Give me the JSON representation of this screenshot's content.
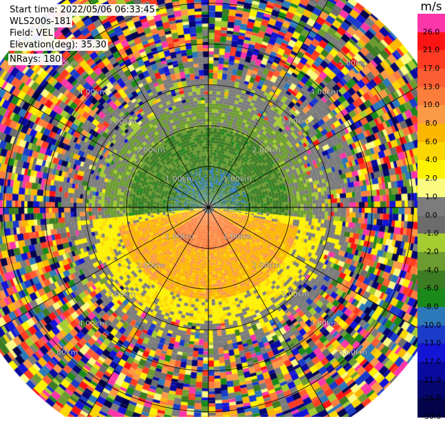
{
  "info": {
    "start_time": "Start time: 2022/05/06 06:33:45",
    "instrument": "WLS200s-181",
    "field": "Field: VEL",
    "elevation": "Elevation(deg): 35.30",
    "nrays": "NRays: 180"
  },
  "chart_data": {
    "type": "heatmap",
    "projection": "polar-ppi",
    "field": "VEL",
    "units": "m/s",
    "elevation_deg": 35.3,
    "n_rays": 180,
    "max_range_km": 6.2,
    "range_rings_km": [
      1,
      2,
      3,
      4,
      5
    ],
    "range_ring_labels": [
      "1.00km",
      "2.00km",
      "3.00km",
      "4.00km",
      "5.00km"
    ],
    "spokes_deg": [
      0,
      30,
      60,
      90,
      120,
      150,
      180,
      210,
      240,
      270,
      300,
      330
    ],
    "colorbar": {
      "unit_label": "m/s",
      "tick_labels": [
        "26.0",
        "21.0",
        "17.0",
        "13.0",
        "10.0",
        "8.0",
        "6.0",
        "4.0",
        "2.0",
        "1.0",
        "0.0",
        "-1.0",
        "-2.0",
        "-4.0",
        "-6.0",
        "-8.0",
        "-10.0",
        "-13.0",
        "-17.0",
        "-21.0",
        "-26.0",
        "-30.0"
      ],
      "colors": [
        "#fb36a8",
        "#fc1414",
        "#fd3c22",
        "#fd5d33",
        "#fd7e3c",
        "#fa9a46",
        "#fbb600",
        "#fcd600",
        "#fdf200",
        "#fbfb82",
        "#7c7c7c",
        "#6c6c6c",
        "#a5cc30",
        "#6c9c30",
        "#3c7c22",
        "#1a8a1a",
        "#2d78b8",
        "#1a3cc8",
        "#1414d6",
        "#0a0aa0",
        "#060670",
        "#03034a"
      ]
    }
  }
}
